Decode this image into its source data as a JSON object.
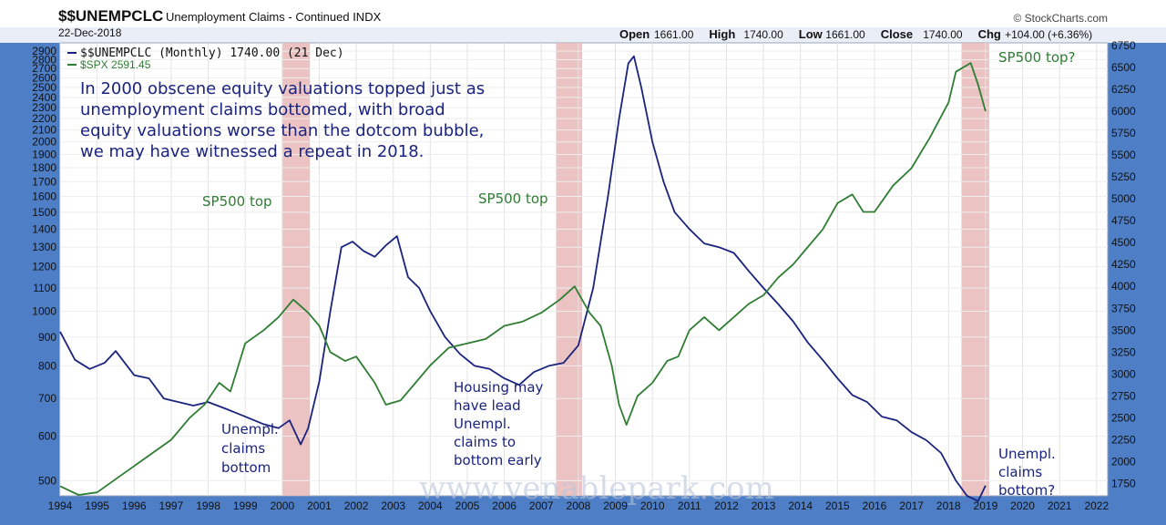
{
  "header": {
    "symbol": "$$UNEMPCLC",
    "description": "Unemployment Claims - Continued",
    "exchange": "INDX",
    "date": "22-Dec-2018",
    "source": "© StockCharts.com",
    "quote_labels": [
      "Open",
      "High",
      "Low",
      "Close",
      "Chg"
    ],
    "quote_values": [
      "1661.00",
      "1740.00",
      "1661.00",
      "1740.00",
      "+104.00 (+6.36%)"
    ]
  },
  "legend": {
    "unemp": "$$UNEMPCLC (Monthly) 1740.00 (21 Dec)",
    "spx": "$SPX 2591.45"
  },
  "annotations": {
    "main_text": [
      "In 2000 obscene equity valuations topped just as",
      "unemployment claims bottomed, with broad",
      "equity valuations worse than the dotcom bubble,",
      "we may have witnessed a repeat in 2018."
    ],
    "sp500_top_2000": "SP500 top",
    "sp500_top_2007": "SP500 top",
    "sp500_top_2018": "SP500 top?",
    "unempl_bottom_2000": [
      "Unempl.",
      "claims",
      "bottom"
    ],
    "housing_note": [
      "Housing may",
      "have lead",
      "Unempl.",
      "claims to",
      "bottom early"
    ],
    "unempl_bottom_2018": [
      "Unempl.",
      "claims",
      "bottom?"
    ],
    "watermark": "www.venablepark.com"
  },
  "colors": {
    "unemp_line": "#1a237e",
    "spx_line": "#2e7d32",
    "highlight": "#e7b9b9",
    "frame": "#4d7ec6",
    "sp_text": "#2e7d32",
    "unemp_text": "#1a237e"
  },
  "chart_data": {
    "type": "line",
    "title": "Unemployment Claims - Continued",
    "x_ticks": [
      "1994",
      "1995",
      "1996",
      "1997",
      "1998",
      "1999",
      "2000",
      "2001",
      "2002",
      "2003",
      "2004",
      "2005",
      "2006",
      "2007",
      "2008",
      "2009",
      "2010",
      "2011",
      "2012",
      "2013",
      "2014",
      "2015",
      "2016",
      "2017",
      "2018",
      "2019",
      "2020",
      "2021",
      "2022"
    ],
    "left_axis_ticks": [
      "500",
      "600",
      "700",
      "800",
      "900",
      "1000",
      "1100",
      "1200",
      "1300",
      "1400",
      "1500",
      "1600",
      "1700",
      "1800",
      "1900",
      "2000",
      "2100",
      "2200",
      "2300",
      "2400",
      "2500",
      "2600",
      "2700",
      "2800",
      "2900"
    ],
    "right_axis_ticks": [
      "1750",
      "2000",
      "2250",
      "2500",
      "2750",
      "3000",
      "3250",
      "3500",
      "3750",
      "4000",
      "4250",
      "4500",
      "4750",
      "5000",
      "5250",
      "5500",
      "5750",
      "6000",
      "6250",
      "6500",
      "6750"
    ],
    "left_scale": "log",
    "left_range": [
      470,
      3000
    ],
    "right_range": [
      1610,
      6780
    ],
    "highlight_periods": [
      [
        2000.0,
        2000.75
      ],
      [
        2007.4,
        2008.1
      ],
      [
        2018.35,
        2019.1
      ]
    ],
    "series": [
      {
        "name": "$$UNEMPCLC (Monthly)",
        "axis": "left",
        "x": [
          1994.0,
          1994.4,
          1994.8,
          1995.2,
          1995.5,
          1996.0,
          1996.4,
          1996.8,
          1997.2,
          1997.6,
          1998.0,
          1998.5,
          1999.0,
          1999.5,
          1999.9,
          2000.2,
          2000.5,
          2000.7,
          2001.0,
          2001.3,
          2001.6,
          2001.9,
          2002.2,
          2002.5,
          2002.8,
          2003.1,
          2003.4,
          2003.7,
          2004.0,
          2004.4,
          2004.8,
          2005.2,
          2005.6,
          2006.0,
          2006.4,
          2006.8,
          2007.2,
          2007.6,
          2008.0,
          2008.4,
          2008.8,
          2009.1,
          2009.35,
          2009.5,
          2009.7,
          2010.0,
          2010.3,
          2010.6,
          2011.0,
          2011.4,
          2011.8,
          2012.2,
          2012.6,
          2013.0,
          2013.4,
          2013.8,
          2014.2,
          2014.6,
          2015.0,
          2015.4,
          2015.8,
          2016.2,
          2016.6,
          2017.0,
          2017.4,
          2017.8,
          2018.2,
          2018.5,
          2018.8,
          2019.0
        ],
        "y": [
          920,
          820,
          790,
          810,
          850,
          770,
          760,
          700,
          690,
          680,
          690,
          670,
          650,
          630,
          620,
          640,
          580,
          620,
          750,
          1000,
          1300,
          1330,
          1280,
          1250,
          1310,
          1360,
          1150,
          1100,
          1000,
          900,
          840,
          800,
          790,
          760,
          740,
          780,
          800,
          810,
          870,
          1100,
          1600,
          2200,
          2760,
          2840,
          2500,
          2000,
          1700,
          1500,
          1400,
          1320,
          1300,
          1270,
          1180,
          1100,
          1030,
          960,
          880,
          820,
          760,
          710,
          690,
          650,
          640,
          610,
          590,
          560,
          500,
          470,
          460,
          490
        ]
      },
      {
        "name": "$SPX",
        "axis": "right",
        "x": [
          1994.0,
          1994.5,
          1995.0,
          1995.5,
          1996.0,
          1996.5,
          1997.0,
          1997.5,
          1997.9,
          1998.3,
          1998.6,
          1999.0,
          1999.5,
          1999.9,
          2000.3,
          2000.7,
          2001.0,
          2001.3,
          2001.7,
          2002.0,
          2002.5,
          2002.8,
          2003.2,
          2003.6,
          2004.0,
          2004.5,
          2005.0,
          2005.5,
          2006.0,
          2006.5,
          2007.0,
          2007.5,
          2007.9,
          2008.3,
          2008.6,
          2008.9,
          2009.1,
          2009.3,
          2009.6,
          2010.0,
          2010.4,
          2010.7,
          2011.0,
          2011.4,
          2011.8,
          2012.2,
          2012.6,
          2013.0,
          2013.4,
          2013.8,
          2014.2,
          2014.6,
          2015.0,
          2015.4,
          2015.7,
          2016.0,
          2016.5,
          2017.0,
          2017.5,
          2018.0,
          2018.2,
          2018.6,
          2018.8,
          2019.0
        ],
        "y": [
          1720,
          1620,
          1650,
          1800,
          1950,
          2100,
          2250,
          2500,
          2650,
          2900,
          2800,
          3350,
          3500,
          3650,
          3850,
          3700,
          3550,
          3250,
          3150,
          3200,
          2900,
          2650,
          2700,
          2900,
          3100,
          3300,
          3350,
          3400,
          3550,
          3600,
          3700,
          3850,
          4000,
          3700,
          3550,
          3100,
          2650,
          2420,
          2750,
          2900,
          3150,
          3200,
          3500,
          3650,
          3500,
          3650,
          3800,
          3900,
          4100,
          4250,
          4450,
          4650,
          4950,
          5050,
          4850,
          4850,
          5150,
          5350,
          5700,
          6100,
          6450,
          6550,
          6300,
          6000
        ]
      }
    ]
  }
}
